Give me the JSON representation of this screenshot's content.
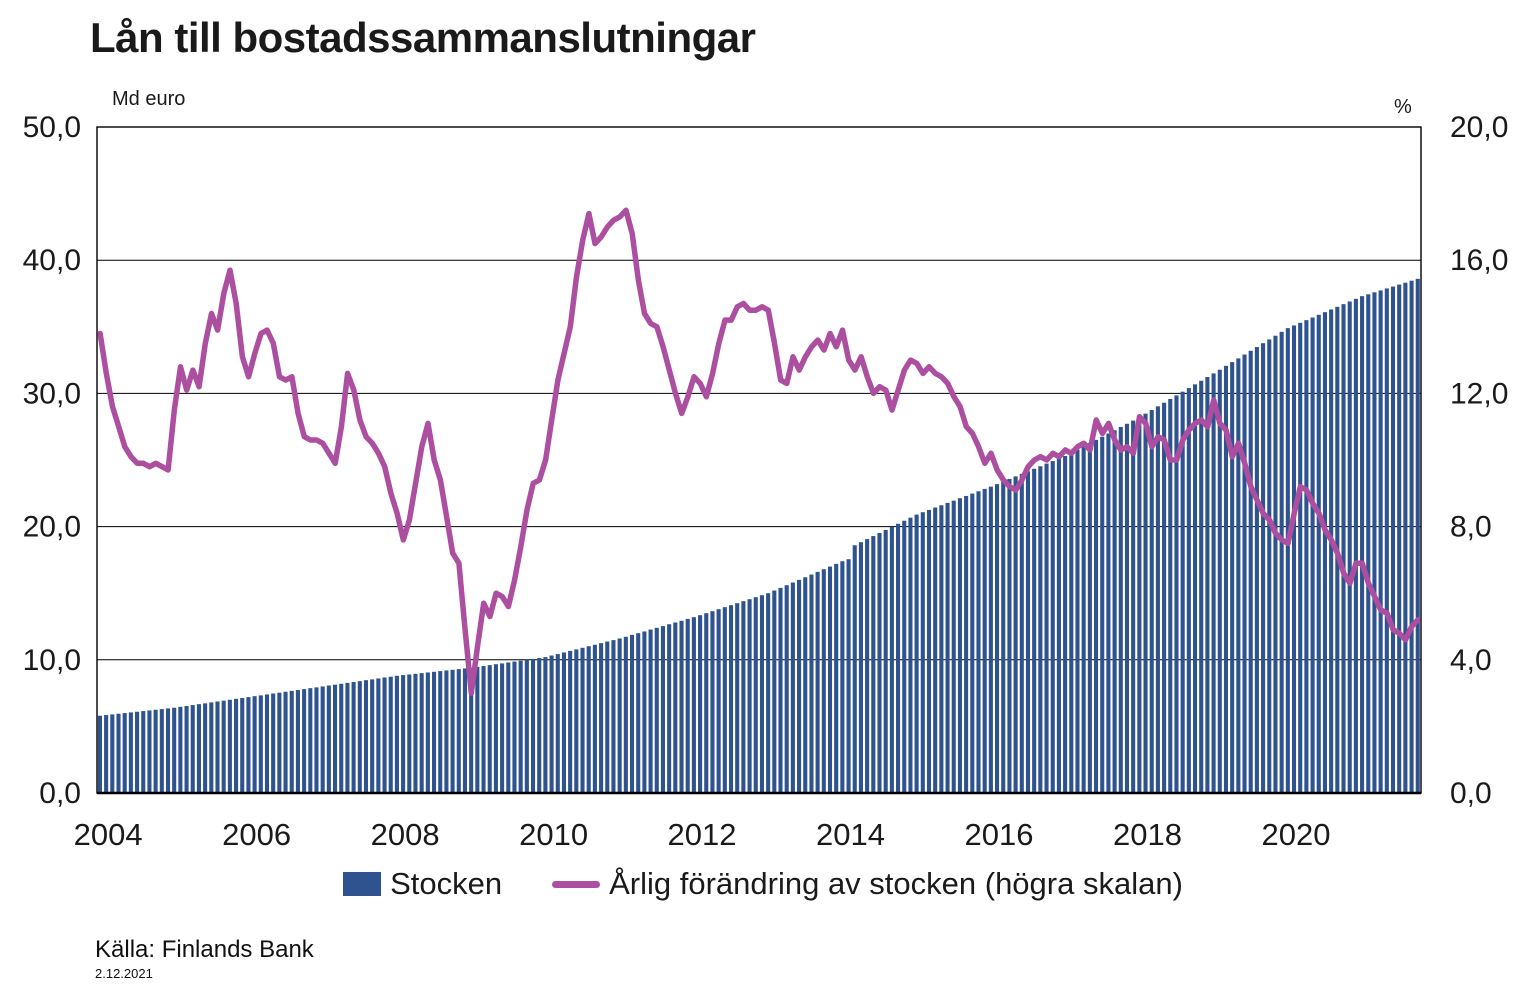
{
  "title": "Lån till bostadssammanslutningar",
  "left_axis": {
    "unit": "Md euro",
    "ticks": [
      {
        "value": 50,
        "label": "50,0"
      },
      {
        "value": 40,
        "label": "40,0"
      },
      {
        "value": 30,
        "label": "30,0"
      },
      {
        "value": 20,
        "label": "20,0"
      },
      {
        "value": 10,
        "label": "10,0"
      },
      {
        "value": 0,
        "label": "0,0"
      }
    ]
  },
  "right_axis": {
    "unit": "%",
    "ticks": [
      {
        "value": 20,
        "label": "20,0"
      },
      {
        "value": 16,
        "label": "16,0"
      },
      {
        "value": 12,
        "label": "12,0"
      },
      {
        "value": 8,
        "label": "8,0"
      },
      {
        "value": 4,
        "label": "4,0"
      },
      {
        "value": 0,
        "label": "0,0"
      }
    ]
  },
  "legend": [
    {
      "label": "Stocken",
      "type": "bar",
      "color": "#2F538F"
    },
    {
      "label": "Årlig förändring av stocken (högra skalan)",
      "type": "line",
      "color": "#AC4FA0"
    }
  ],
  "source": {
    "text": "Källa: Finlands Bank",
    "date": "2.12.2021"
  },
  "chart_data": {
    "type": "bar+line combo, monthly time series",
    "x_start": "2004-01",
    "x_end": "2021-10",
    "frequency": "monthly",
    "x_tick_years": [
      2004,
      2006,
      2008,
      2010,
      2012,
      2014,
      2016,
      2018,
      2020
    ],
    "left_ylim": [
      0,
      50
    ],
    "right_ylim": [
      0,
      20
    ],
    "grid": true,
    "series": [
      {
        "name": "Stocken",
        "type": "bar",
        "axis": "left",
        "unit": "Md euro",
        "color": "#2F538F",
        "values": [
          5.8,
          5.85,
          5.9,
          5.95,
          6.0,
          6.05,
          6.1,
          6.15,
          6.2,
          6.25,
          6.3,
          6.35,
          6.4,
          6.47,
          6.53,
          6.6,
          6.67,
          6.73,
          6.8,
          6.87,
          6.93,
          7.0,
          7.07,
          7.13,
          7.2,
          7.27,
          7.33,
          7.4,
          7.47,
          7.53,
          7.6,
          7.67,
          7.73,
          7.8,
          7.87,
          7.93,
          8.0,
          8.07,
          8.13,
          8.2,
          8.27,
          8.33,
          8.4,
          8.47,
          8.53,
          8.6,
          8.67,
          8.73,
          8.8,
          8.85,
          8.9,
          8.95,
          9.0,
          9.05,
          9.1,
          9.15,
          9.2,
          9.25,
          9.3,
          9.35,
          9.4,
          9.47,
          9.53,
          9.6,
          9.67,
          9.73,
          9.8,
          9.87,
          9.93,
          10.0,
          10.07,
          10.13,
          10.2,
          10.32,
          10.43,
          10.55,
          10.67,
          10.78,
          10.9,
          11.02,
          11.13,
          11.25,
          11.37,
          11.48,
          11.6,
          11.73,
          11.87,
          12.0,
          12.13,
          12.27,
          12.4,
          12.53,
          12.67,
          12.8,
          12.93,
          13.07,
          13.2,
          13.35,
          13.5,
          13.65,
          13.8,
          13.95,
          14.1,
          14.25,
          14.4,
          14.55,
          14.7,
          14.85,
          15.0,
          15.2,
          15.4,
          15.6,
          15.8,
          16.0,
          16.2,
          16.4,
          16.6,
          16.8,
          17.0,
          17.2,
          17.4,
          17.55,
          18.6,
          18.83,
          19.06,
          19.29,
          19.52,
          19.75,
          19.98,
          20.21,
          20.44,
          20.67,
          20.9,
          21.08,
          21.25,
          21.43,
          21.6,
          21.78,
          21.95,
          22.13,
          22.3,
          22.48,
          22.65,
          22.83,
          23.0,
          23.19,
          23.38,
          23.58,
          23.77,
          23.96,
          24.15,
          24.34,
          24.53,
          24.73,
          24.92,
          25.11,
          25.3,
          25.54,
          25.78,
          26.03,
          26.27,
          26.51,
          26.75,
          26.99,
          27.23,
          27.48,
          27.72,
          27.96,
          28.2,
          28.48,
          28.75,
          29.03,
          29.3,
          29.58,
          29.85,
          30.13,
          30.4,
          30.68,
          30.95,
          31.23,
          31.5,
          31.78,
          32.07,
          32.35,
          32.63,
          32.92,
          33.2,
          33.48,
          33.77,
          34.05,
          34.33,
          34.62,
          34.9,
          35.1,
          35.3,
          35.5,
          35.7,
          35.9,
          36.1,
          36.3,
          36.5,
          36.7,
          36.9,
          37.1,
          37.3,
          37.44,
          37.59,
          37.73,
          37.88,
          38.02,
          38.17,
          38.31,
          38.46,
          38.6
        ]
      },
      {
        "name": "Årlig förändring av stocken (högra skalan)",
        "type": "line",
        "axis": "right",
        "unit": "%",
        "color": "#AC4FA0",
        "values": [
          13.8,
          12.6,
          11.6,
          11.0,
          10.4,
          10.1,
          9.9,
          9.9,
          9.8,
          9.9,
          9.8,
          9.7,
          11.5,
          12.8,
          12.1,
          12.7,
          12.2,
          13.5,
          14.4,
          13.9,
          15.0,
          15.7,
          14.7,
          13.1,
          12.5,
          13.2,
          13.8,
          13.9,
          13.5,
          12.5,
          12.4,
          12.5,
          11.4,
          10.7,
          10.6,
          10.6,
          10.5,
          10.2,
          9.9,
          11.0,
          12.6,
          12.1,
          11.2,
          10.7,
          10.5,
          10.2,
          9.8,
          9.0,
          8.4,
          7.6,
          8.2,
          9.3,
          10.4,
          11.1,
          10.0,
          9.4,
          8.3,
          7.2,
          6.9,
          4.9,
          3.0,
          4.4,
          5.7,
          5.3,
          6.0,
          5.9,
          5.6,
          6.4,
          7.4,
          8.5,
          9.3,
          9.4,
          10.0,
          11.2,
          12.4,
          13.2,
          14.0,
          15.5,
          16.6,
          17.4,
          16.5,
          16.7,
          17.0,
          17.2,
          17.3,
          17.5,
          16.8,
          15.4,
          14.4,
          14.1,
          14.0,
          13.4,
          12.7,
          12.0,
          11.4,
          11.9,
          12.5,
          12.3,
          11.9,
          12.6,
          13.5,
          14.2,
          14.2,
          14.6,
          14.7,
          14.5,
          14.5,
          14.6,
          14.5,
          13.5,
          12.4,
          12.3,
          13.1,
          12.7,
          13.1,
          13.4,
          13.6,
          13.3,
          13.8,
          13.4,
          13.9,
          13.0,
          12.7,
          13.1,
          12.5,
          12.0,
          12.2,
          12.1,
          11.5,
          12.1,
          12.7,
          13.0,
          12.9,
          12.6,
          12.8,
          12.6,
          12.5,
          12.3,
          11.9,
          11.6,
          11.0,
          10.8,
          10.4,
          9.9,
          10.2,
          9.7,
          9.4,
          9.2,
          9.1,
          9.4,
          9.8,
          10.0,
          10.1,
          10.0,
          10.2,
          10.1,
          10.3,
          10.2,
          10.4,
          10.5,
          10.3,
          11.2,
          10.8,
          11.1,
          10.6,
          10.3,
          10.4,
          10.2,
          11.3,
          11.1,
          10.4,
          10.7,
          10.6,
          10.0,
          10.0,
          10.6,
          10.9,
          11.1,
          11.2,
          11.0,
          11.8,
          11.1,
          10.9,
          10.1,
          10.5,
          9.9,
          9.2,
          8.8,
          8.4,
          8.2,
          7.8,
          7.6,
          7.5,
          8.4,
          9.2,
          9.1,
          8.7,
          8.4,
          7.9,
          7.6,
          7.2,
          6.6,
          6.3,
          6.9,
          6.9,
          6.3,
          5.9,
          5.5,
          5.4,
          4.9,
          4.8,
          4.6,
          5.0,
          5.2
        ]
      }
    ]
  }
}
